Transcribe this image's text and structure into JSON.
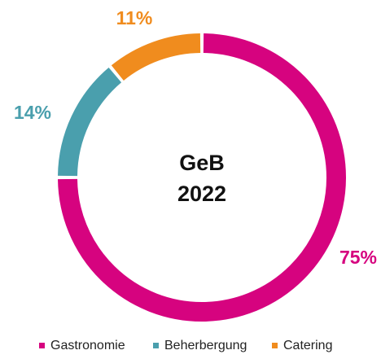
{
  "chart_data": {
    "type": "pie",
    "center_text": [
      "GeB",
      "2022"
    ],
    "categories": [
      "Gastronomie",
      "Beherbergung",
      "Catering"
    ],
    "values": [
      75,
      14,
      11
    ],
    "value_labels": [
      "75%",
      "14%",
      "11%"
    ],
    "colors": [
      "#d6037f",
      "#4a9fad",
      "#f08c1e"
    ],
    "donut": true
  }
}
